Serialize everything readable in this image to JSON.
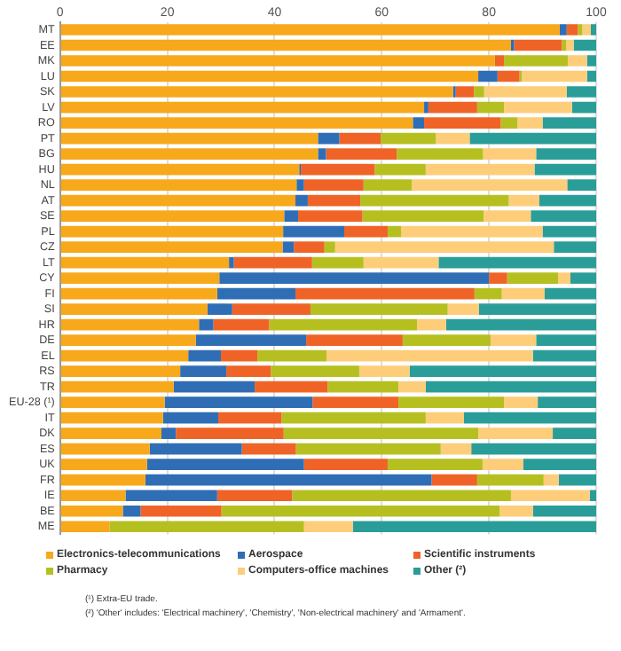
{
  "chart_data": {
    "type": "bar",
    "orientation": "horizontal",
    "stacked": true,
    "grid": "x",
    "legend": "bottom",
    "categories": [
      "MT",
      "EE",
      "MK",
      "LU",
      "SK",
      "LV",
      "RO",
      "PT",
      "BG",
      "HU",
      "NL",
      "AT",
      "SE",
      "PL",
      "CZ",
      "LT",
      "CY",
      "FI",
      "SI",
      "HR",
      "DE",
      "EL",
      "RS",
      "TR",
      "EU-28 (¹)",
      "IT",
      "DK",
      "ES",
      "UK",
      "FR",
      "IE",
      "BE",
      "ME"
    ],
    "xlim": [
      0,
      100
    ],
    "xticks": [
      0,
      20,
      40,
      60,
      80,
      100
    ],
    "series": [
      {
        "name": "Electronics-telecommunications",
        "color": "#f7a81b",
        "values": [
          93.2,
          84.1,
          81.1,
          78.0,
          73.3,
          67.9,
          65.8,
          48.1,
          48.1,
          44.6,
          44.1,
          43.9,
          41.8,
          41.6,
          41.5,
          31.5,
          29.7,
          29.3,
          27.5,
          25.9,
          25.3,
          23.9,
          22.4,
          21.2,
          19.5,
          19.2,
          18.9,
          16.7,
          16.2,
          15.9,
          12.2,
          11.7,
          9.2
        ]
      },
      {
        "name": "Aerospace",
        "color": "#2f6eb5",
        "values": [
          1.3,
          0.6,
          0,
          3.6,
          0.5,
          0.8,
          2.1,
          4.0,
          1.5,
          0.3,
          1.4,
          2.3,
          2.6,
          11.4,
          2.1,
          0.9,
          50.3,
          14.6,
          4.6,
          2.7,
          20.6,
          6.1,
          8.6,
          15.1,
          27.6,
          10.3,
          2.7,
          17.2,
          29.3,
          53.4,
          17.1,
          3.3,
          0
        ]
      },
      {
        "name": "Scientific instruments",
        "color": "#ef6327",
        "values": [
          2.1,
          8.9,
          1.7,
          4.1,
          3.4,
          9.1,
          14.3,
          7.7,
          13.2,
          13.8,
          11.1,
          9.8,
          12.0,
          8.1,
          5.7,
          14.6,
          3.4,
          33.4,
          14.6,
          10.4,
          18.0,
          6.8,
          8.3,
          13.6,
          16.0,
          11.8,
          20.1,
          10.1,
          15.6,
          8.5,
          14.0,
          15.1,
          0
        ]
      },
      {
        "name": "Pharmacy",
        "color": "#b5c020",
        "values": [
          0.8,
          0.8,
          11.9,
          0.4,
          1.9,
          5.0,
          3.1,
          10.3,
          16.1,
          9.5,
          9.0,
          27.7,
          22.6,
          2.5,
          2.0,
          9.6,
          9.5,
          5.1,
          25.6,
          27.6,
          16.4,
          12.9,
          16.5,
          13.2,
          19.7,
          26.9,
          36.3,
          27.0,
          17.7,
          12.4,
          40.8,
          51.9,
          36.3
        ]
      },
      {
        "name": "Computers-office machines",
        "color": "#fdcd7a",
        "values": [
          1.6,
          1.4,
          3.6,
          12.2,
          15.4,
          12.7,
          4.7,
          6.3,
          9.9,
          20.3,
          29.0,
          5.7,
          8.8,
          26.4,
          40.8,
          14.0,
          2.3,
          8.0,
          5.8,
          5.4,
          8.5,
          38.5,
          9.4,
          5.1,
          6.3,
          7.1,
          13.9,
          5.7,
          7.6,
          2.8,
          14.7,
          6.2,
          9.1
        ]
      },
      {
        "name": "Other (²)",
        "color": "#2a9d98",
        "values": [
          1.0,
          4.2,
          1.7,
          1.7,
          5.5,
          4.5,
          10.0,
          23.6,
          11.2,
          11.5,
          5.4,
          10.6,
          12.2,
          10.0,
          7.9,
          29.4,
          4.8,
          9.6,
          21.9,
          28.0,
          11.2,
          11.8,
          34.8,
          31.8,
          10.9,
          24.7,
          8.1,
          23.3,
          13.6,
          7.0,
          1.2,
          11.8,
          45.4
        ]
      }
    ],
    "annotations": [
      "(¹) Extra-EU trade.",
      "(²) 'Other' includes: 'Electrical machinery', 'Chemistry', 'Non-electrical machinery' and 'Armament'."
    ]
  }
}
